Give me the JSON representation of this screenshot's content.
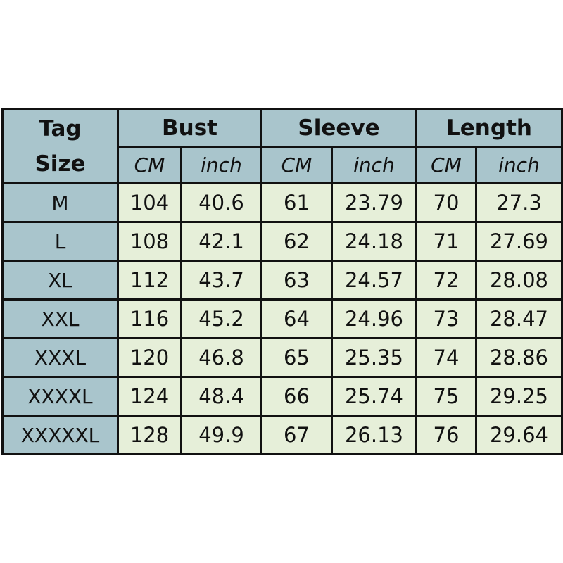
{
  "headers": {
    "tag_size": [
      "Tag",
      "Size"
    ],
    "groups": [
      "Bust",
      "Sleeve",
      "Length"
    ],
    "units": [
      "CM",
      "inch",
      "CM",
      "inch",
      "CM",
      "inch"
    ]
  },
  "rows": [
    [
      "M",
      "104",
      "40.6",
      "61",
      "23.79",
      "70",
      "27.3"
    ],
    [
      "L",
      "108",
      "42.1",
      "62",
      "24.18",
      "71",
      "27.69"
    ],
    [
      "XL",
      "112",
      "43.7",
      "63",
      "24.57",
      "72",
      "28.08"
    ],
    [
      "XXL",
      "116",
      "45.2",
      "64",
      "24.96",
      "73",
      "28.47"
    ],
    [
      "XXXL",
      "120",
      "46.8",
      "65",
      "25.35",
      "74",
      "28.86"
    ],
    [
      "XXXXL",
      "124",
      "48.4",
      "66",
      "25.74",
      "75",
      "29.25"
    ],
    [
      "XXXXXL",
      "128",
      "49.9",
      "67",
      "26.13",
      "76",
      "29.64"
    ]
  ],
  "colors": {
    "header": "#a9c5cc",
    "cell": "#e6efd9"
  }
}
